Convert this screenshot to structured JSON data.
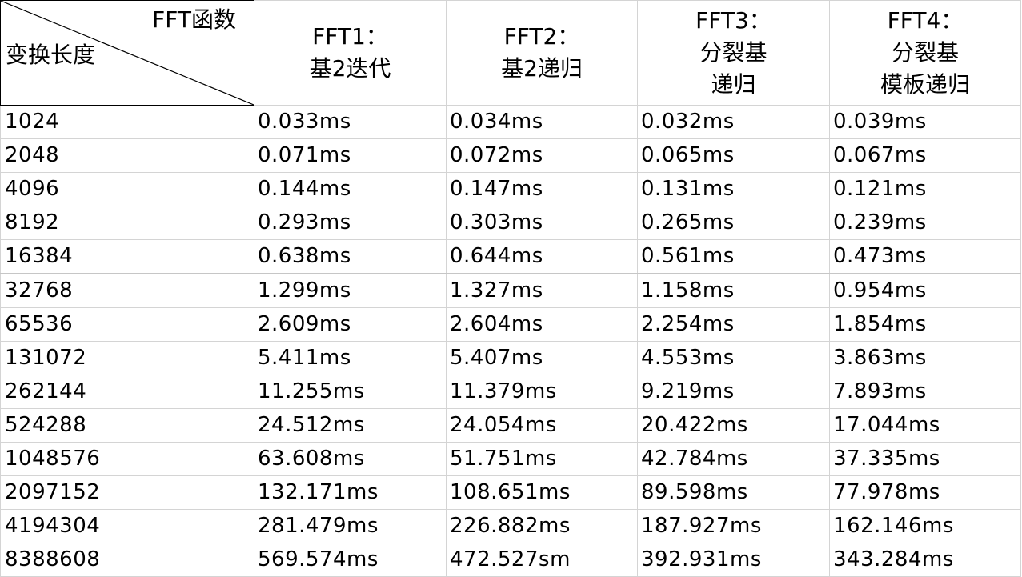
{
  "table": {
    "corner": {
      "top_label": "FFT函数",
      "bottom_label": "变换长度"
    },
    "headers": [
      {
        "lines": [
          "FFT1：",
          "基2迭代"
        ]
      },
      {
        "lines": [
          "FFT2：",
          "基2递归"
        ]
      },
      {
        "lines": [
          "FFT3：",
          "分裂基",
          "递归"
        ]
      },
      {
        "lines": [
          "FFT4：",
          "分裂基",
          "模板递归"
        ]
      }
    ],
    "rows": [
      {
        "length": "1024",
        "fft1": "0.033ms",
        "fft2": "0.034ms",
        "fft3": "0.032ms",
        "fft4": "0.039ms"
      },
      {
        "length": "2048",
        "fft1": "0.071ms",
        "fft2": "0.072ms",
        "fft3": "0.065ms",
        "fft4": "0.067ms"
      },
      {
        "length": "4096",
        "fft1": "0.144ms",
        "fft2": "0.147ms",
        "fft3": "0.131ms",
        "fft4": "0.121ms"
      },
      {
        "length": "8192",
        "fft1": "0.293ms",
        "fft2": "0.303ms",
        "fft3": "0.265ms",
        "fft4": "0.239ms"
      },
      {
        "length": "16384",
        "fft1": "0.638ms",
        "fft2": "0.644ms",
        "fft3": "0.561ms",
        "fft4": "0.473ms"
      },
      {
        "length": "32768",
        "fft1": "1.299ms",
        "fft2": "1.327ms",
        "fft3": "1.158ms",
        "fft4": "0.954ms"
      },
      {
        "length": "65536",
        "fft1": "2.609ms",
        "fft2": "2.604ms",
        "fft3": "2.254ms",
        "fft4": "1.854ms"
      },
      {
        "length": "131072",
        "fft1": "5.411ms",
        "fft2": "5.407ms",
        "fft3": "4.553ms",
        "fft4": "3.863ms"
      },
      {
        "length": "262144",
        "fft1": "11.255ms",
        "fft2": "11.379ms",
        "fft3": "9.219ms",
        "fft4": "7.893ms"
      },
      {
        "length": "524288",
        "fft1": "24.512ms",
        "fft2": "24.054ms",
        "fft3": "20.422ms",
        "fft4": "17.044ms"
      },
      {
        "length": "1048576",
        "fft1": "63.608ms",
        "fft2": "51.751ms",
        "fft3": "42.784ms",
        "fft4": "37.335ms"
      },
      {
        "length": "2097152",
        "fft1": "132.171ms",
        "fft2": "108.651ms",
        "fft3": "89.598ms",
        "fft4": "77.978ms"
      },
      {
        "length": "4194304",
        "fft1": "281.479ms",
        "fft2": "226.882ms",
        "fft3": "187.927ms",
        "fft4": "162.146ms"
      },
      {
        "length": "8388608",
        "fft1": "569.574ms",
        "fft2": "472.527sm",
        "fft3": "392.931ms",
        "fft4": "343.284ms"
      }
    ]
  }
}
